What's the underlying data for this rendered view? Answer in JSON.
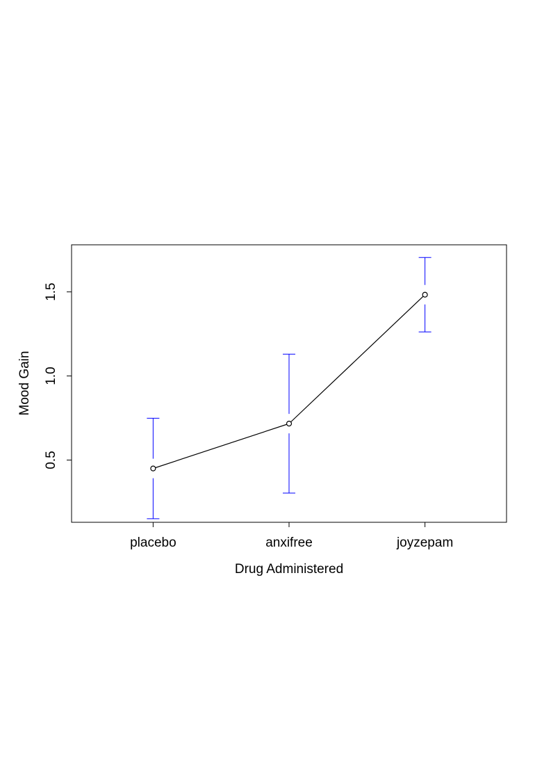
{
  "chart_data": {
    "type": "line",
    "title": "",
    "xlabel": "Drug Administered",
    "ylabel": "Mood Gain",
    "categories": [
      "placebo",
      "anxifree",
      "joyzepam"
    ],
    "series": [
      {
        "values": [
          0.45,
          0.7167,
          1.4833
        ],
        "ci_lower": [
          0.1513,
          0.3037,
          1.2622
        ],
        "ci_upper": [
          0.7487,
          1.1296,
          1.7044
        ]
      }
    ],
    "ylim": [
      0.13,
      1.78
    ],
    "yticks": [
      0.5,
      1.0,
      1.5
    ],
    "ytick_labels": [
      "0.5",
      "1.0",
      "1.5"
    ],
    "grid": false,
    "legend": "none",
    "colors": {
      "line": "#000000",
      "error_bar": "#0000ff",
      "frame": "#000000"
    },
    "marker": "open-circle"
  }
}
